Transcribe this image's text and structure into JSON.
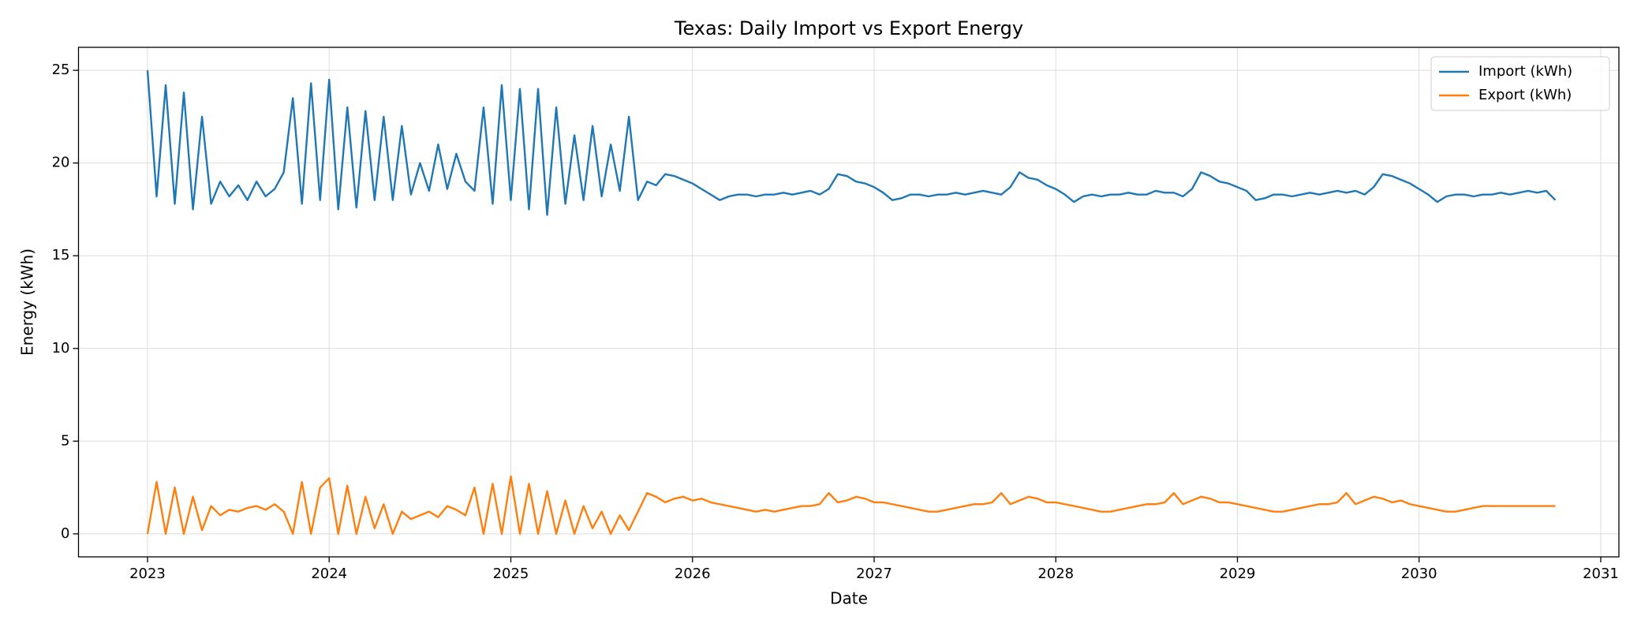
{
  "chart_data": {
    "type": "line",
    "title": "Texas: Daily Import vs Export Energy",
    "x_label": "Date",
    "y_label": "Energy (kWh)",
    "x": [
      2023,
      2023.05,
      2023.1,
      2023.15,
      2023.2,
      2023.25,
      2023.3,
      2023.35,
      2023.4,
      2023.45,
      2023.5,
      2023.55,
      2023.6,
      2023.65,
      2023.7,
      2023.75,
      2023.8,
      2023.85,
      2023.9,
      2023.95,
      2024,
      2024.05,
      2024.1,
      2024.15,
      2024.2,
      2024.25,
      2024.3,
      2024.35,
      2024.4,
      2024.45,
      2024.5,
      2024.55,
      2024.6,
      2024.65,
      2024.7,
      2024.75,
      2024.8,
      2024.85,
      2024.9,
      2024.95,
      2025,
      2025.05,
      2025.1,
      2025.15,
      2025.2,
      2025.25,
      2025.3,
      2025.35,
      2025.4,
      2025.45,
      2025.5,
      2025.55,
      2025.6,
      2025.65,
      2025.7,
      2025.75,
      2025.8,
      2025.85,
      2025.9,
      2025.95,
      2026,
      2026.05,
      2026.1,
      2026.15,
      2026.2,
      2026.25,
      2026.3,
      2026.35,
      2026.4,
      2026.45,
      2026.5,
      2026.55,
      2026.6,
      2026.65,
      2026.7,
      2026.75,
      2026.8,
      2026.85,
      2026.9,
      2026.95,
      2027,
      2027.05,
      2027.1,
      2027.15,
      2027.2,
      2027.25,
      2027.3,
      2027.35,
      2027.4,
      2027.45,
      2027.5,
      2027.55,
      2027.6,
      2027.65,
      2027.7,
      2027.75,
      2027.8,
      2027.85,
      2027.9,
      2027.95,
      2028,
      2028.05,
      2028.1,
      2028.15,
      2028.2,
      2028.25,
      2028.3,
      2028.35,
      2028.4,
      2028.45,
      2028.5,
      2028.55,
      2028.6,
      2028.65,
      2028.7,
      2028.75,
      2028.8,
      2028.85,
      2028.9,
      2028.95,
      2029,
      2029.05,
      2029.1,
      2029.15,
      2029.2,
      2029.25,
      2029.3,
      2029.35,
      2029.4,
      2029.45,
      2029.5,
      2029.55,
      2029.6,
      2029.65,
      2029.7,
      2029.75,
      2029.8,
      2029.85,
      2029.9,
      2029.95,
      2030,
      2030.05,
      2030.1,
      2030.15,
      2030.2,
      2030.25,
      2030.3,
      2030.35,
      2030.4,
      2030.45,
      2030.5,
      2030.55,
      2030.6,
      2030.65,
      2030.7,
      2030.75
    ],
    "series": [
      {
        "name": "Import (kWh)",
        "color": "#1f77b4",
        "values": [
          25,
          18.2,
          24.2,
          17.8,
          23.8,
          17.5,
          22.5,
          17.8,
          19.0,
          18.2,
          18.8,
          18.0,
          19.0,
          18.2,
          18.6,
          19.5,
          23.5,
          17.8,
          24.3,
          18.0,
          24.5,
          17.5,
          23.0,
          17.6,
          22.8,
          18.0,
          22.5,
          18.0,
          22.0,
          18.3,
          20.0,
          18.5,
          21.0,
          18.6,
          20.5,
          19.0,
          18.5,
          23.0,
          17.8,
          24.2,
          18.0,
          24.0,
          17.5,
          24.0,
          17.2,
          23.0,
          17.8,
          21.5,
          18.0,
          22.0,
          18.2,
          21.0,
          18.5,
          22.5,
          18.0,
          19.0,
          18.8,
          19.4,
          19.3,
          19.1,
          18.9,
          18.6,
          18.3,
          18.0,
          18.2,
          18.3,
          18.3,
          18.2,
          18.3,
          18.3,
          18.4,
          18.3,
          18.4,
          18.5,
          18.3,
          18.6,
          19.4,
          19.3,
          19.0,
          18.9,
          18.7,
          18.4,
          18.0,
          18.1,
          18.3,
          18.3,
          18.2,
          18.3,
          18.3,
          18.4,
          18.3,
          18.4,
          18.5,
          18.4,
          18.3,
          18.7,
          19.5,
          19.2,
          19.1,
          18.8,
          18.6,
          18.3,
          17.9,
          18.2,
          18.3,
          18.2,
          18.3,
          18.3,
          18.4,
          18.3,
          18.3,
          18.5,
          18.4,
          18.4,
          18.2,
          18.6,
          19.5,
          19.3,
          19.0,
          18.9,
          18.7,
          18.5,
          18.0,
          18.1,
          18.3,
          18.3,
          18.2,
          18.3,
          18.4,
          18.3,
          18.4,
          18.5,
          18.4,
          18.5,
          18.3,
          18.7,
          19.4,
          19.3,
          19.1,
          18.9,
          18.6,
          18.3,
          17.9,
          18.2,
          18.3,
          18.3,
          18.2,
          18.3,
          18.3,
          18.4,
          18.3,
          18.4,
          18.5,
          18.4,
          18.5,
          18.0
        ]
      },
      {
        "name": "Export (kWh)",
        "color": "#ff7f0e",
        "values": [
          0,
          2.8,
          0,
          2.5,
          0,
          2.0,
          0.2,
          1.5,
          1.0,
          1.3,
          1.2,
          1.4,
          1.5,
          1.3,
          1.6,
          1.2,
          0,
          2.8,
          0,
          2.5,
          3.0,
          0,
          2.6,
          0,
          2.0,
          0.3,
          1.6,
          0,
          1.2,
          0.8,
          1.0,
          1.2,
          0.9,
          1.5,
          1.3,
          1.0,
          2.5,
          0,
          2.7,
          0,
          3.1,
          0,
          2.7,
          0,
          2.3,
          0,
          1.8,
          0,
          1.5,
          0.3,
          1.2,
          0,
          1.0,
          0.2,
          1.2,
          2.2,
          2.0,
          1.7,
          1.9,
          2.0,
          1.8,
          1.9,
          1.7,
          1.6,
          1.5,
          1.4,
          1.3,
          1.2,
          1.3,
          1.2,
          1.3,
          1.4,
          1.5,
          1.5,
          1.6,
          2.2,
          1.7,
          1.8,
          2.0,
          1.9,
          1.7,
          1.7,
          1.6,
          1.5,
          1.4,
          1.3,
          1.2,
          1.2,
          1.3,
          1.4,
          1.5,
          1.6,
          1.6,
          1.7,
          2.2,
          1.6,
          1.8,
          2.0,
          1.9,
          1.7,
          1.7,
          1.6,
          1.5,
          1.4,
          1.3,
          1.2,
          1.2,
          1.3,
          1.4,
          1.5,
          1.6,
          1.6,
          1.7,
          2.2,
          1.6,
          1.8,
          2.0,
          1.9,
          1.7,
          1.7,
          1.6,
          1.5,
          1.4,
          1.3,
          1.2,
          1.2,
          1.3,
          1.4,
          1.5,
          1.6,
          1.6,
          1.7,
          2.2,
          1.6,
          1.8,
          2.0,
          1.9,
          1.7,
          1.8,
          1.6,
          1.5,
          1.4,
          1.3,
          1.2,
          1.2,
          1.3,
          1.4,
          1.5,
          1.5,
          1.5,
          1.5,
          1.5,
          1.5,
          1.5,
          1.5,
          1.5
        ]
      }
    ],
    "xlim": [
      2022.62,
      2031.1
    ],
    "xticks": [
      2023,
      2024,
      2025,
      2026,
      2027,
      2028,
      2029,
      2030,
      2031
    ],
    "ylim": [
      -1.24,
      26.24
    ],
    "yticks": [
      0,
      5,
      10,
      15,
      20,
      25
    ],
    "grid": true,
    "legend": "upper-right"
  }
}
